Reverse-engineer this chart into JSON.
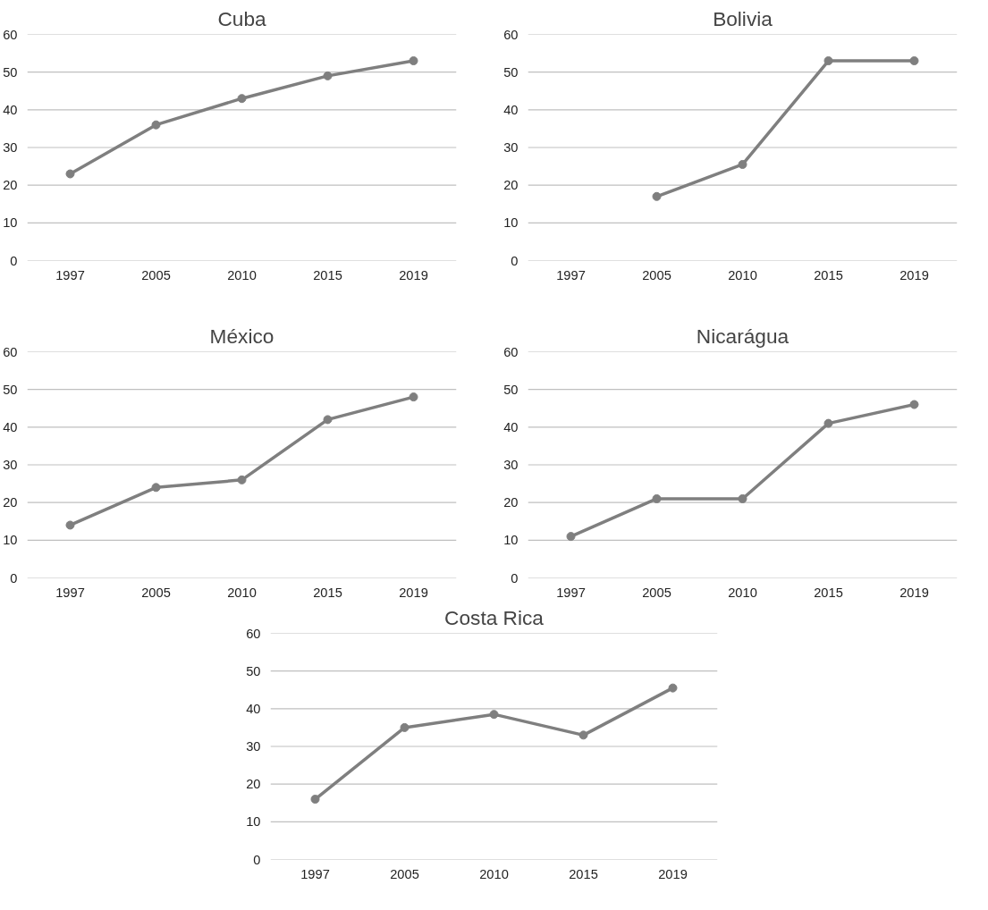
{
  "chart_data": [
    {
      "type": "line",
      "title": "Cuba",
      "categories": [
        "1997",
        "2005",
        "2010",
        "2015",
        "2019"
      ],
      "series": [
        {
          "color": "#7f7f7f",
          "values": [
            23,
            36,
            43,
            49,
            53
          ]
        }
      ],
      "ylim": [
        0,
        60
      ],
      "yticks": [
        0,
        10,
        20,
        30,
        40,
        50,
        60
      ],
      "grid": "y",
      "marker": "circle"
    },
    {
      "type": "line",
      "title": "Bolivia",
      "categories": [
        "1997",
        "2005",
        "2010",
        "2015",
        "2019"
      ],
      "series": [
        {
          "color": "#7f7f7f",
          "values": [
            null,
            17,
            25.5,
            53,
            53
          ]
        }
      ],
      "ylim": [
        0,
        60
      ],
      "yticks": [
        0,
        10,
        20,
        30,
        40,
        50,
        60
      ],
      "grid": "y",
      "marker": "circle"
    },
    {
      "type": "line",
      "title": "México",
      "categories": [
        "1997",
        "2005",
        "2010",
        "2015",
        "2019"
      ],
      "series": [
        {
          "color": "#7f7f7f",
          "values": [
            14,
            24,
            26,
            42,
            48
          ]
        }
      ],
      "ylim": [
        0,
        60
      ],
      "yticks": [
        0,
        10,
        20,
        30,
        40,
        50,
        60
      ],
      "grid": "y",
      "marker": "circle"
    },
    {
      "type": "line",
      "title": "Nicarágua",
      "categories": [
        "1997",
        "2005",
        "2010",
        "2015",
        "2019"
      ],
      "series": [
        {
          "color": "#7f7f7f",
          "values": [
            11,
            21,
            21,
            41,
            46
          ]
        }
      ],
      "ylim": [
        0,
        60
      ],
      "yticks": [
        0,
        10,
        20,
        30,
        40,
        50,
        60
      ],
      "grid": "y",
      "marker": "circle"
    },
    {
      "type": "line",
      "title": "Costa Rica",
      "categories": [
        "1997",
        "2005",
        "2010",
        "2015",
        "2019"
      ],
      "series": [
        {
          "color": "#7f7f7f",
          "values": [
            16,
            35,
            38.5,
            33,
            45.5
          ]
        }
      ],
      "ylim": [
        0,
        60
      ],
      "yticks": [
        0,
        10,
        20,
        30,
        40,
        50,
        60
      ],
      "grid": "y",
      "marker": "circle"
    }
  ]
}
